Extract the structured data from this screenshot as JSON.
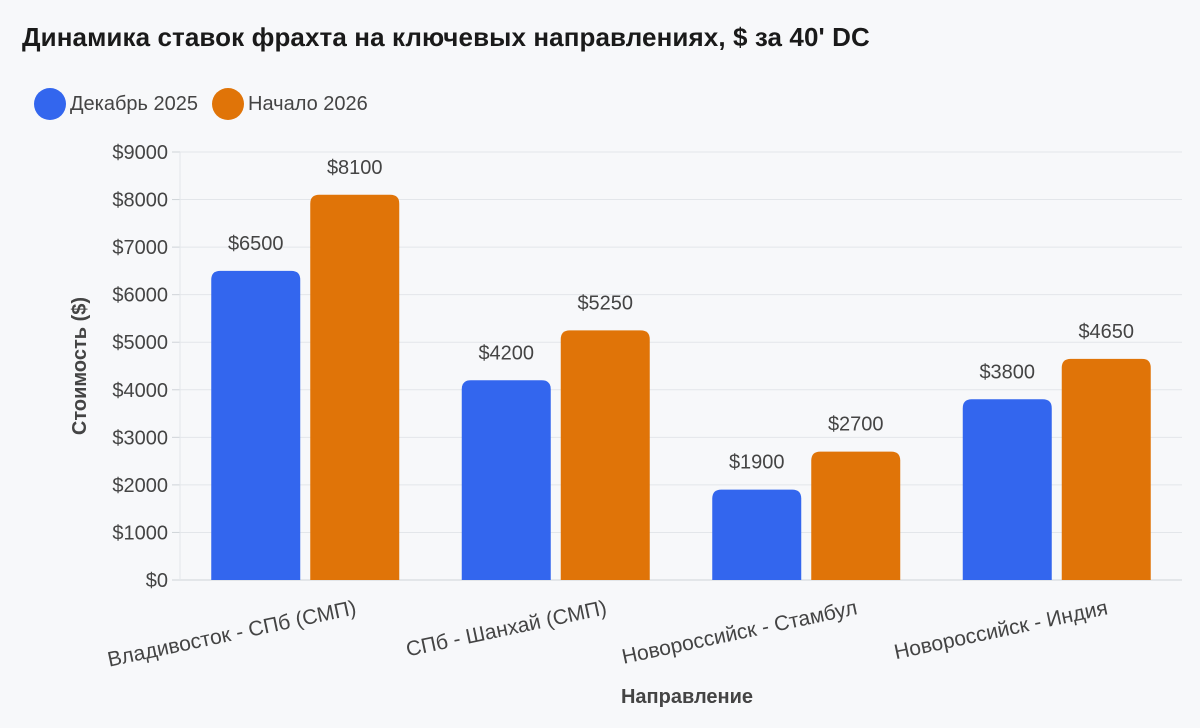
{
  "chart_data": {
    "type": "bar",
    "title": "Динамика ставок фрахта на ключевых направлениях, $ за 40' DC",
    "xlabel": "Направление",
    "ylabel": "Стоимость ($)",
    "categories": [
      "Владивосток - СПб (СМП)",
      "СПб - Шанхай (СМП)",
      "Новороссийск - Стамбул",
      "Новороссийск - Индия"
    ],
    "series": [
      {
        "name": "Декабрь 2025",
        "color": "#3366ee",
        "values": [
          6500,
          4200,
          1900,
          3800
        ],
        "labels": [
          "$6500",
          "$4200",
          "$1900",
          "$3800"
        ]
      },
      {
        "name": "Начало 2026",
        "color": "#e07408",
        "values": [
          8100,
          5250,
          2700,
          4650
        ],
        "labels": [
          "$8100",
          "$5250",
          "$2700",
          "$4650"
        ]
      }
    ],
    "ylim": [
      0,
      9000
    ],
    "yticks": [
      {
        "value": 0,
        "label": "$0"
      },
      {
        "value": 1000,
        "label": "$1000"
      },
      {
        "value": 2000,
        "label": "$2000"
      },
      {
        "value": 3000,
        "label": "$3000"
      },
      {
        "value": 4000,
        "label": "$4000"
      },
      {
        "value": 5000,
        "label": "$5000"
      },
      {
        "value": 6000,
        "label": "$6000"
      },
      {
        "value": 7000,
        "label": "$7000"
      },
      {
        "value": 8000,
        "label": "$8000"
      },
      {
        "value": 9000,
        "label": "$9000"
      }
    ],
    "grid": true,
    "legend_position": "top-left"
  }
}
